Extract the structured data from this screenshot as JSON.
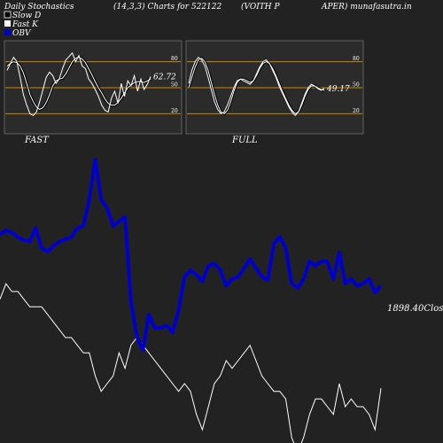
{
  "header": {
    "left": "Daily Stochastics",
    "params": "(14,3,3) Charts for 522122",
    "stock_a": "(VOITH P",
    "stock_b": "APER) munafasutra.in"
  },
  "legend": [
    {
      "label": "Slow  D",
      "color": "#000000",
      "icon": "square-swatch"
    },
    {
      "label": "Fast K",
      "color": "#ffffff",
      "icon": "square-swatch"
    },
    {
      "label": "OBV",
      "color": "#0000cc",
      "icon": "square-swatch"
    }
  ],
  "colors": {
    "background": "#222222",
    "panel_bg": "#2b2b2b",
    "level_line": "#cc8800",
    "obv": "#0000cc",
    "price": "#ffffff"
  },
  "chart_data": [
    {
      "type": "line",
      "panel": "FAST",
      "ylim": [
        0,
        100
      ],
      "yticks": [
        20,
        50,
        80
      ],
      "levels": [
        20,
        50,
        80
      ],
      "last_value_label": "62.72",
      "series": [
        {
          "name": "Slow  D",
          "values": [
            75,
            78,
            80,
            79,
            75,
            67,
            55,
            42,
            34,
            28,
            25,
            27,
            33,
            42,
            52,
            58,
            60,
            61,
            66,
            73,
            80,
            84,
            85,
            83,
            79,
            72,
            65,
            57,
            50,
            44,
            37,
            32,
            30,
            30,
            33,
            38,
            44,
            50,
            53,
            56,
            57,
            57,
            56,
            58,
            60
          ]
        },
        {
          "name": "Fast K",
          "values": [
            70,
            78,
            85,
            80,
            62,
            42,
            30,
            20,
            18,
            22,
            34,
            48,
            62,
            68,
            64,
            55,
            60,
            72,
            82,
            86,
            90,
            80,
            87,
            75,
            72,
            60,
            55,
            48,
            40,
            30,
            24,
            22,
            38,
            46,
            32,
            55,
            40,
            58,
            52,
            64,
            46,
            60,
            48,
            54,
            62.72
          ]
        }
      ]
    },
    {
      "type": "line",
      "panel": "FULL",
      "ylim": [
        0,
        100
      ],
      "yticks": [
        20,
        50,
        80
      ],
      "levels": [
        20,
        50,
        80
      ],
      "last_value_label": "49.17",
      "series": [
        {
          "name": "Slow  D",
          "values": [
            50,
            62,
            74,
            82,
            84,
            80,
            70,
            56,
            42,
            30,
            22,
            20,
            24,
            34,
            46,
            56,
            60,
            60,
            58,
            56,
            58,
            64,
            72,
            78,
            80,
            78,
            72,
            64,
            55,
            46,
            38,
            30,
            24,
            20,
            22,
            30,
            40,
            48,
            52,
            52,
            50,
            48,
            47
          ]
        },
        {
          "name": "Fast K",
          "values": [
            55,
            70,
            80,
            85,
            82,
            75,
            62,
            48,
            34,
            25,
            20,
            22,
            30,
            40,
            50,
            58,
            60,
            58,
            56,
            54,
            58,
            66,
            74,
            80,
            82,
            78,
            70,
            62,
            52,
            44,
            36,
            28,
            22,
            18,
            22,
            32,
            42,
            50,
            54,
            52,
            49,
            47,
            49.17
          ]
        }
      ]
    },
    {
      "type": "line",
      "panel": "main",
      "last_close_label": "1898.40",
      "close_suffix": "Close",
      "series": [
        {
          "name": "OBV",
          "values": [
            3910,
            3920,
            3915,
            3905,
            3898,
            3895,
            3925,
            3880,
            3872,
            3885,
            3895,
            3900,
            3905,
            3925,
            3930,
            3990,
            4080,
            3990,
            3970,
            3930,
            3940,
            3950,
            3760,
            3680,
            3650,
            3730,
            3700,
            3700,
            3705,
            3690,
            3740,
            3815,
            3830,
            3820,
            3805,
            3840,
            3845,
            3830,
            3795,
            3810,
            3815,
            3835,
            3855,
            3835,
            3815,
            3808,
            3890,
            3905,
            3880,
            3800,
            3790,
            3810,
            3850,
            3840,
            3850,
            3850,
            3810,
            3870,
            3800,
            3810,
            3795,
            3800,
            3810,
            3780,
            3795
          ]
        },
        {
          "name": "Close",
          "values": [
            1910,
            1912,
            1911,
            1911,
            1910,
            1909,
            1909,
            1909,
            1908,
            1907,
            1906,
            1905,
            1905,
            1904,
            1903,
            1903,
            1900,
            1898,
            1899,
            1900,
            1903,
            1901,
            1904,
            1905,
            1904,
            1903,
            1902,
            1901,
            1900,
            1899,
            1898,
            1899,
            1898,
            1895,
            1893,
            1896,
            1899,
            1900,
            1902,
            1901,
            1902,
            1903,
            1904,
            1902,
            1900,
            1899,
            1898,
            1898,
            1897,
            1892,
            1890,
            1892,
            1895,
            1897,
            1897,
            1896,
            1895,
            1899,
            1896,
            1897,
            1896,
            1896,
            1895,
            1893,
            1898.4
          ]
        }
      ]
    }
  ]
}
